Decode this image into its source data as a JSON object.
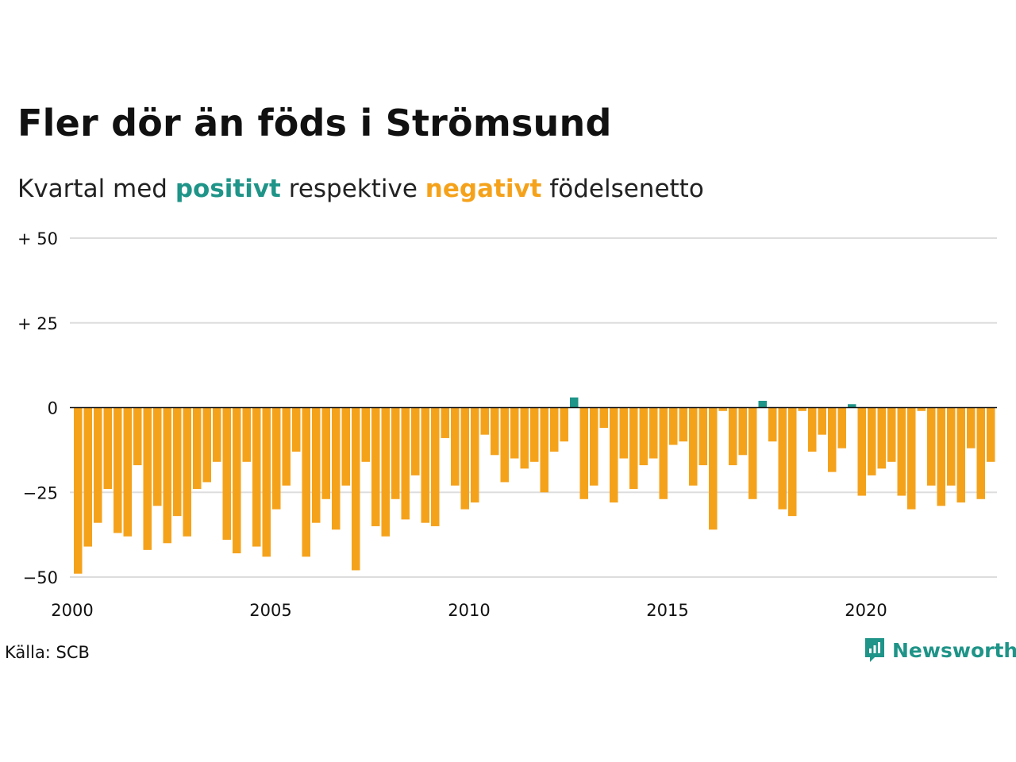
{
  "title": "Fler dör än föds i Strömsund",
  "subtitle": {
    "prefix": "Kvartal med",
    "positive_word": "positivt",
    "middle": "respektive",
    "negative_word": "negativt",
    "suffix": "födelsenetto"
  },
  "source": "Källa: SCB",
  "brand": {
    "name": "Newsworthy",
    "icon": "newsworthy-logo-icon"
  },
  "colors": {
    "positive": "#1f9488",
    "negative": "#f5a21b",
    "grid": "#dddddd",
    "zero_line": "#111111"
  },
  "chart_data": {
    "type": "bar",
    "title": "Fler dör än föds i Strömsund",
    "subtitle": "Kvartal med positivt respektive negativt födelsenetto",
    "xlabel": "",
    "ylabel": "",
    "ylim": [
      -50,
      50
    ],
    "yticks": [
      {
        "value": 50,
        "label": "+ 50"
      },
      {
        "value": 25,
        "label": "+ 25"
      },
      {
        "value": 0,
        "label": "0"
      },
      {
        "value": -25,
        "label": "−25"
      },
      {
        "value": -50,
        "label": "−50"
      }
    ],
    "xticks": [
      {
        "year": 2000,
        "label": "2000"
      },
      {
        "year": 2005,
        "label": "2005"
      },
      {
        "year": 2010,
        "label": "2010"
      },
      {
        "year": 2015,
        "label": "2015"
      },
      {
        "year": 2020,
        "label": "2020"
      }
    ],
    "start_year": 2000,
    "start_quarter": 1,
    "grid": true,
    "values": [
      -49,
      -41,
      -34,
      -24,
      -37,
      -38,
      -17,
      -42,
      -29,
      -40,
      -32,
      -38,
      -24,
      -22,
      -16,
      -39,
      -43,
      -16,
      -41,
      -44,
      -30,
      -23,
      -13,
      -44,
      -34,
      -27,
      -36,
      -23,
      -48,
      -16,
      -35,
      -38,
      -27,
      -33,
      -20,
      -34,
      -35,
      -9,
      -23,
      -30,
      -28,
      -8,
      -14,
      -22,
      -15,
      -18,
      -16,
      -25,
      -13,
      -10,
      3,
      -27,
      -23,
      -6,
      -28,
      -15,
      -24,
      -17,
      -15,
      -27,
      -11,
      -10,
      -23,
      -17,
      -36,
      -1,
      -17,
      -14,
      -27,
      2,
      -10,
      -30,
      -32,
      -1,
      -13,
      -8,
      -19,
      -12,
      1,
      -26,
      -20,
      -18,
      -16,
      -26,
      -30,
      -1,
      -23,
      -29,
      -23,
      -28,
      -12,
      -27,
      -16
    ]
  }
}
